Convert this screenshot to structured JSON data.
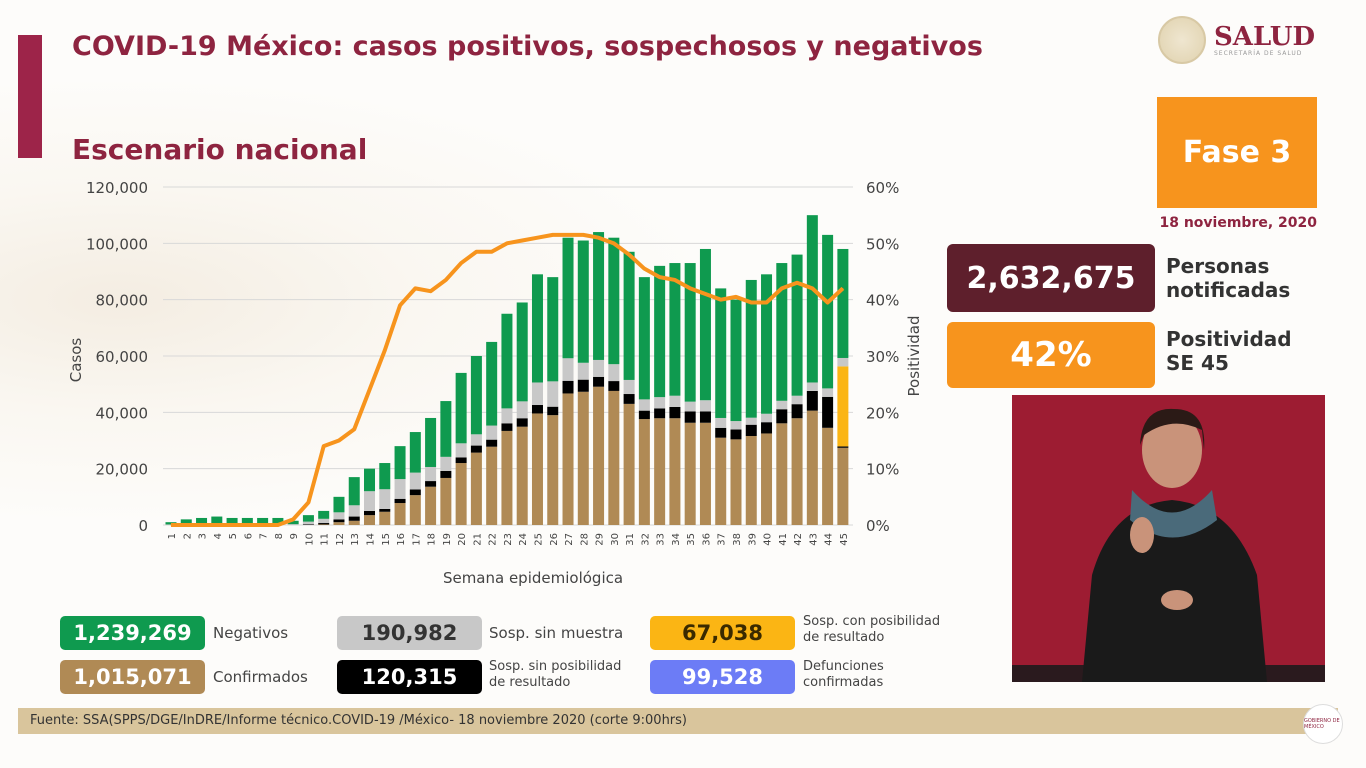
{
  "header": {
    "title": "COVID-19 México: casos positivos, sospechosos y negativos",
    "subtitle": "Escenario nacional"
  },
  "logo": {
    "name": "SALUD",
    "sub": "SECRETARÍA DE SALUD"
  },
  "phase": {
    "label": "Fase 3",
    "date": "18 noviembre, 2020",
    "color": "#f7941d"
  },
  "notified": {
    "value": "2,632,675",
    "label1": "Personas",
    "label2": "notificadas"
  },
  "positivity": {
    "value": "42%",
    "label1": "Positividad",
    "label2": "SE 45"
  },
  "legend": {
    "negativos": {
      "value": "1,239,269",
      "label": "Negativos",
      "color": "#0f9a4f"
    },
    "confirmados": {
      "value": "1,015,071",
      "label": "Confirmados",
      "color": "#b08a55"
    },
    "sin_muestra": {
      "value": "190,982",
      "label": "Sosp. sin muestra",
      "color": "#c8c8c8"
    },
    "sin_posibilidad": {
      "value": "120,315",
      "label1": "Sosp. sin posibilidad",
      "label2": "de resultado",
      "color": "#000000"
    },
    "con_posibilidad": {
      "value": "67,038",
      "label1": "Sosp. con posibilidad",
      "label2": "de resultado",
      "color": "#fbb514"
    },
    "defunciones": {
      "value": "99,528",
      "label1": "Defunciones",
      "label2": "confirmadas",
      "color": "#6c7cf6"
    }
  },
  "footer": {
    "source": "Fuente: SSA(SPPS/DGE/InDRE/Informe técnico.COVID-19 /México- 18 noviembre 2020 (corte 9:00hrs)",
    "gob": "GOBIERNO DE MÉXICO"
  },
  "chart_data": {
    "type": "bar",
    "stacked": true,
    "xlabel": "Semana epidemiológica",
    "ylabel": "Casos",
    "y2label": "Positividad",
    "ylim": [
      0,
      120000
    ],
    "y2lim": [
      0,
      60
    ],
    "yticks": [
      "0",
      "20,000",
      "40,000",
      "60,000",
      "80,000",
      "100,000",
      "120,000"
    ],
    "y2ticks": [
      "0%",
      "10%",
      "20%",
      "30%",
      "40%",
      "50%",
      "60%"
    ],
    "grid": true,
    "categories": [
      "1",
      "2",
      "3",
      "4",
      "5",
      "6",
      "7",
      "8",
      "9",
      "10",
      "11",
      "12",
      "13",
      "14",
      "15",
      "16",
      "17",
      "18",
      "19",
      "20",
      "21",
      "22",
      "23",
      "24",
      "25",
      "26",
      "27",
      "28",
      "29",
      "30",
      "31",
      "32",
      "33",
      "34",
      "35",
      "36",
      "37",
      "38",
      "39",
      "40",
      "41",
      "42",
      "43",
      "44",
      "45"
    ],
    "series": [
      {
        "key": "confirmados",
        "color": "#b08a55",
        "values": [
          0,
          0,
          0,
          0,
          0,
          0,
          0,
          0,
          0,
          0,
          200,
          1000,
          1500,
          3500,
          4700,
          7800,
          10600,
          13600,
          16700,
          22000,
          25700,
          27800,
          33400,
          34900,
          39600,
          39000,
          46700,
          47300,
          49100,
          47600,
          43000,
          37600,
          37900,
          37900,
          36300,
          36300,
          31000,
          30400,
          31600,
          32500,
          36100,
          37900,
          40600,
          34500,
          27400
        ]
      },
      {
        "key": "sin_posibilidad",
        "color": "#000000",
        "values": [
          0,
          0,
          0,
          0,
          0,
          0,
          0,
          0,
          0,
          200,
          500,
          1000,
          1500,
          1500,
          1000,
          1500,
          2000,
          2000,
          2500,
          2000,
          2500,
          2500,
          2700,
          3000,
          3000,
          3000,
          4500,
          4300,
          3500,
          3500,
          3500,
          3000,
          3500,
          4000,
          4000,
          4000,
          3500,
          3500,
          4000,
          4000,
          5000,
          5000,
          7000,
          11000,
          500
        ]
      },
      {
        "key": "con_posibilidad",
        "color": "#fbb514",
        "values": [
          0,
          0,
          0,
          0,
          0,
          0,
          0,
          0,
          0,
          0,
          0,
          0,
          0,
          0,
          0,
          0,
          0,
          0,
          0,
          0,
          0,
          0,
          0,
          0,
          0,
          0,
          0,
          0,
          0,
          0,
          0,
          0,
          0,
          0,
          0,
          0,
          0,
          0,
          0,
          0,
          0,
          0,
          0,
          0,
          28400
        ]
      },
      {
        "key": "sin_muestra",
        "color": "#c8c8c8",
        "values": [
          200,
          300,
          300,
          300,
          300,
          300,
          300,
          300,
          300,
          1000,
          1500,
          2500,
          4000,
          7000,
          7000,
          7000,
          6000,
          5000,
          5000,
          5000,
          4000,
          5000,
          5300,
          6000,
          8000,
          9000,
          8000,
          6000,
          6000,
          6000,
          5000,
          4000,
          4000,
          4000,
          3500,
          4000,
          3500,
          3000,
          2500,
          3000,
          3000,
          3000,
          3000,
          3000,
          3000
        ]
      },
      {
        "key": "negativos",
        "color": "#0f9a4f",
        "values": [
          800,
          1700,
          2200,
          2700,
          2200,
          2200,
          2200,
          2200,
          1200,
          2300,
          2800,
          5500,
          10000,
          8000,
          9300,
          11700,
          14400,
          17400,
          19800,
          25000,
          27800,
          29700,
          33600,
          35100,
          38400,
          37000,
          42800,
          43400,
          45400,
          44900,
          45500,
          43400,
          46600,
          47100,
          49200,
          53700,
          46000,
          43100,
          48900,
          49500,
          48900,
          50100,
          59400,
          54500,
          38700
        ]
      }
    ],
    "line": {
      "name": "Positividad",
      "color": "#f7941d",
      "values": [
        0,
        0,
        0,
        0,
        0,
        0,
        0,
        0,
        1,
        4,
        14,
        15,
        17,
        24,
        31,
        39,
        42,
        41.5,
        43.5,
        46.5,
        48.5,
        48.5,
        50,
        50.5,
        51,
        51.5,
        51.5,
        51.5,
        51,
        50,
        48,
        45.5,
        44,
        43.5,
        42,
        41,
        40,
        40.5,
        39.5,
        39.5,
        42,
        43,
        42,
        39.5,
        42
      ]
    }
  }
}
